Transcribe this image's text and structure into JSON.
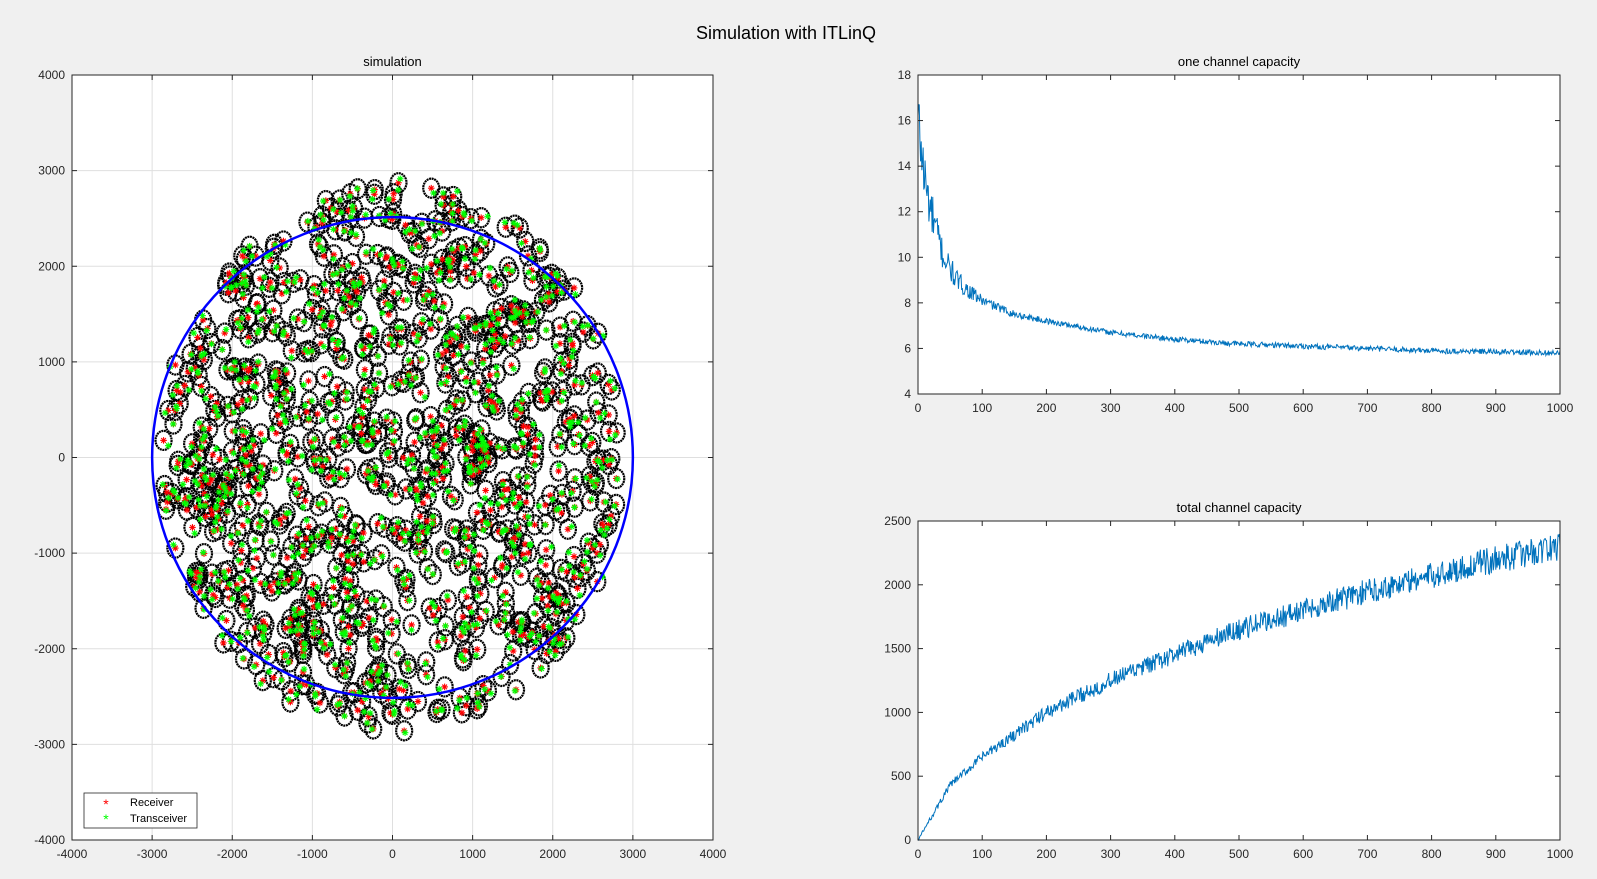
{
  "figure": {
    "title": "Simulation with ITLinQ"
  },
  "chart_data": [
    {
      "id": "simulation",
      "type": "scatter",
      "title": "simulation",
      "xlabel": "",
      "ylabel": "",
      "xlim": [
        -4000,
        4000
      ],
      "ylim": [
        -4000,
        4000
      ],
      "xticks": [
        -4000,
        -3000,
        -2000,
        -1000,
        0,
        1000,
        2000,
        3000,
        4000
      ],
      "yticks": [
        -4000,
        -3000,
        -2000,
        -1000,
        0,
        1000,
        2000,
        3000,
        4000
      ],
      "grid": true,
      "boundary": {
        "center": [
          0,
          0
        ],
        "radius": 3000,
        "color": "#0000ff"
      },
      "legend": {
        "location": "bottom-left",
        "entries": [
          "Receiver",
          "Transceiver"
        ]
      },
      "series": [
        {
          "name": "Receiver",
          "marker": "*",
          "color": "#ff0000",
          "count": 1000
        },
        {
          "name": "Transceiver",
          "marker": "*",
          "color": "#00ff00",
          "count": 1000
        }
      ],
      "coverage_circle": {
        "radius": 100,
        "color": "#000000"
      }
    },
    {
      "id": "one-channel",
      "type": "line",
      "title": "one channel capacity",
      "xlabel": "",
      "ylabel": "",
      "xlim": [
        0,
        1000
      ],
      "ylim": [
        4,
        18
      ],
      "xticks": [
        0,
        100,
        200,
        300,
        400,
        500,
        600,
        700,
        800,
        900,
        1000
      ],
      "yticks": [
        4,
        6,
        8,
        10,
        12,
        14,
        16,
        18
      ],
      "grid": false,
      "color": "#0072bd",
      "trend": {
        "x": [
          0,
          10,
          20,
          40,
          60,
          80,
          100,
          150,
          200,
          300,
          400,
          500,
          600,
          700,
          800,
          900,
          1000
        ],
        "y": [
          16.1,
          13.5,
          12.0,
          10.0,
          9.0,
          8.5,
          8.1,
          7.5,
          7.2,
          6.7,
          6.4,
          6.2,
          6.1,
          6.0,
          5.9,
          5.85,
          5.8
        ]
      }
    },
    {
      "id": "total-channel",
      "type": "line",
      "title": "total channel capacity",
      "xlabel": "",
      "ylabel": "",
      "xlim": [
        0,
        1000
      ],
      "ylim": [
        0,
        2500
      ],
      "xticks": [
        0,
        100,
        200,
        300,
        400,
        500,
        600,
        700,
        800,
        900,
        1000
      ],
      "yticks": [
        0,
        500,
        1000,
        1500,
        2000,
        2500
      ],
      "grid": false,
      "color": "#0072bd",
      "trend": {
        "x": [
          0,
          50,
          100,
          200,
          300,
          400,
          500,
          600,
          700,
          800,
          900,
          1000
        ],
        "y": [
          0,
          430,
          650,
          1000,
          1250,
          1450,
          1650,
          1800,
          1950,
          2070,
          2200,
          2300
        ]
      }
    }
  ]
}
